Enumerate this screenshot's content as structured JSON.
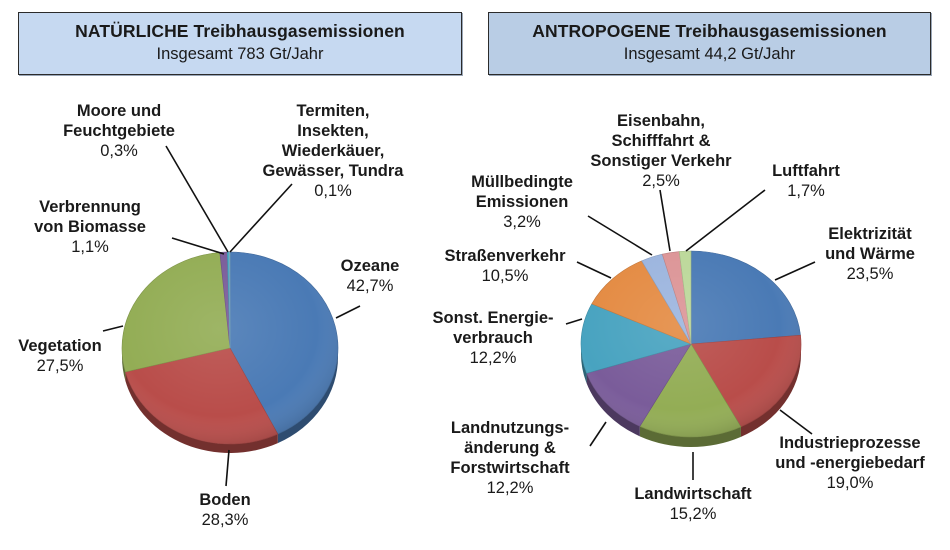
{
  "left_header": {
    "title": "NATÜRLICHE Treibhausgasemissionen",
    "subtitle": "Insgesamt 783 Gt/Jahr"
  },
  "right_header": {
    "title": "ANTROPOGENE Treibhausgasemissionen",
    "subtitle": "Insgesamt 44,2 Gt/Jahr"
  },
  "chart_data": [
    {
      "type": "pie",
      "title": "NATÜRLICHE Treibhausgasemissionen",
      "subtitle": "Insgesamt 783 Gt/Jahr",
      "style": "3d-pie",
      "categories": [
        "Ozeane",
        "Boden",
        "Vegetation",
        "Verbrennung von Biomasse",
        "Moore und Feuchtgebiete",
        "Termiten, Insekten, Wiederkäuer, Gewässer, Tundra"
      ],
      "values": [
        42.7,
        28.3,
        27.5,
        1.1,
        0.3,
        0.1
      ],
      "value_labels": [
        "42,7%",
        "28,3%",
        "27,5%",
        "1,1%",
        "0,3%",
        "0,1%"
      ],
      "colors": [
        "#4a7ab5",
        "#b94d4a",
        "#93ad55",
        "#7a5c9a",
        "#4aa8c4",
        "#8fc0d8"
      ],
      "unit": "%"
    },
    {
      "type": "pie",
      "title": "ANTROPOGENE Treibhausgasemissionen",
      "subtitle": "Insgesamt 44,2 Gt/Jahr",
      "style": "3d-pie",
      "categories": [
        "Elektrizität und Wärme",
        "Industrieprozesse und -energiebedarf",
        "Landwirtschaft",
        "Landnutzungsänderung & Forstwirtschaft",
        "Sonst. Energieverbrauch",
        "Straßenverkehr",
        "Müllbedingte Emissionen",
        "Eisenbahn, Schifffahrt & Sonstiger Verkehr",
        "Luftfahrt"
      ],
      "values": [
        23.5,
        19.0,
        15.2,
        12.2,
        12.2,
        10.5,
        3.2,
        2.5,
        1.7
      ],
      "value_labels": [
        "23,5%",
        "19,0%",
        "15,2%",
        "12,2%",
        "12,2%",
        "10,5%",
        "3,2%",
        "2,5%",
        "1,7%"
      ],
      "colors": [
        "#4a7ab5",
        "#b94d4a",
        "#93ad55",
        "#7a5c9a",
        "#48a3c0",
        "#e48b43",
        "#9cb5de",
        "#dc9597",
        "#bcd89a"
      ],
      "unit": "%"
    }
  ],
  "left_labels": [
    {
      "name": "Ozeane",
      "pct": "42,7%"
    },
    {
      "name": "Boden",
      "pct": "28,3%"
    },
    {
      "name": "Vegetation",
      "pct": "27,5%"
    },
    {
      "name_l1": "Verbrennung",
      "name_l2": "von Biomasse",
      "pct": "1,1%"
    },
    {
      "name_l1": "Moore und",
      "name_l2": "Feuchtgebiete",
      "pct": "0,3%"
    },
    {
      "name_l1": "Termiten,",
      "name_l2": "Insekten,",
      "name_l3": "Wiederkäuer,",
      "name_l4": "Gewässer, Tundra",
      "pct": "0,1%"
    }
  ],
  "right_labels": [
    {
      "name_l1": "Elektrizität",
      "name_l2": "und Wärme",
      "pct": "23,5%"
    },
    {
      "name_l1": "Industrieprozesse",
      "name_l2": "und -energiebedarf",
      "pct": "19,0%"
    },
    {
      "name": "Landwirtschaft",
      "pct": "15,2%"
    },
    {
      "name_l1": "Landnutzungs-",
      "name_l2": "änderung &",
      "name_l3": "Forstwirtschaft",
      "pct": "12,2%"
    },
    {
      "name_l1": "Sonst. Energie-",
      "name_l2": "verbrauch",
      "pct": "12,2%"
    },
    {
      "name": "Straßenverkehr",
      "pct": "10,5%"
    },
    {
      "name_l1": "Müllbedingte",
      "name_l2": "Emissionen",
      "pct": "3,2%"
    },
    {
      "name_l1": "Eisenbahn,",
      "name_l2": "Schifffahrt &",
      "name_l3": "Sonstiger Verkehr",
      "pct": "2,5%"
    },
    {
      "name": "Luftfahrt",
      "pct": "1,7%"
    }
  ]
}
